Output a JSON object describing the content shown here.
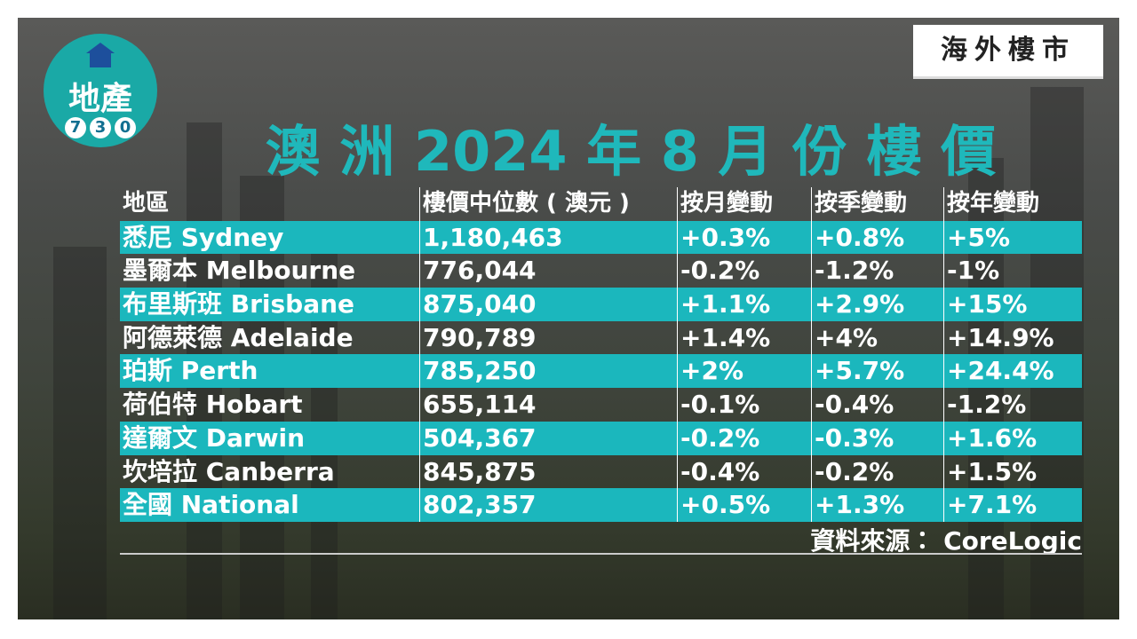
{
  "logo": {
    "text": "地產",
    "digits": [
      "7",
      "3",
      "0"
    ]
  },
  "tag": "海外樓市",
  "title": "澳 洲 2024 年 8 月 份 樓 價",
  "table": {
    "header": [
      "地區",
      "樓價中位數 ( 澳元 )",
      "按月變動",
      "按季變動",
      "按年變動"
    ],
    "rows": [
      [
        "悉尼 Sydney",
        "1,180,463",
        "+0.3%",
        "+0.8%",
        "+5%"
      ],
      [
        "墨爾本 Melbourne",
        "776,044",
        "-0.2%",
        "-1.2%",
        "-1%"
      ],
      [
        "布里斯班 Brisbane",
        "875,040",
        "+1.1%",
        "+2.9%",
        "+15%"
      ],
      [
        "阿德萊德 Adelaide",
        "790,789",
        "+1.4%",
        "+4%",
        "+14.9%"
      ],
      [
        "珀斯 Perth",
        "785,250",
        "+2%",
        "+5.7%",
        "+24.4%"
      ],
      [
        "荷伯特 Hobart",
        "655,114",
        "-0.1%",
        "-0.4%",
        "-1.2%"
      ],
      [
        "達爾文 Darwin",
        "504,367",
        "-0.2%",
        "-0.3%",
        "+1.6%"
      ],
      [
        "坎培拉 Canberra",
        "845,875",
        "-0.4%",
        "-0.2%",
        "+1.5%"
      ],
      [
        "全國 National",
        "802,357",
        "+0.5%",
        "+1.3%",
        "+7.1%"
      ]
    ]
  },
  "source": "資料來源： CoreLogic"
}
